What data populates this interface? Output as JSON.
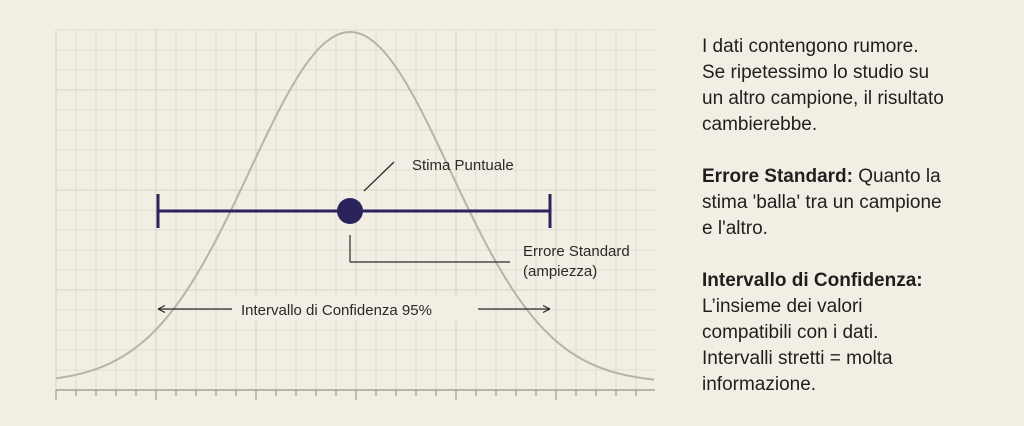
{
  "diagram": {
    "point_label": "Stima Puntuale",
    "se_label_line1": "Errore Standard",
    "se_label_line2": "(ampiezza)",
    "ci_label": "Intervallo di Confidenza 95%"
  },
  "explanation": {
    "intro_lines": [
      "I dati contengono rumore.",
      "Se ripetessimo lo studio su",
      "un altro campione, il risultato",
      "cambierebbe."
    ],
    "se_heading": "Errore Standard:",
    "se_lines": [
      " Quanto la",
      "stima 'balla' tra un campione",
      "e l'altro."
    ],
    "ci_heading": "Intervallo di Confidenza:",
    "ci_lines": [
      "L’insieme dei valori",
      "compatibili con i dati.",
      "Intervalli stretti = molta",
      "informazione."
    ]
  },
  "colors": {
    "background": "#f2eee4",
    "grid": "#dcd7cb",
    "curve": "#b6b3ab",
    "interval": "#2a235c",
    "text": "#1d1d1d"
  }
}
